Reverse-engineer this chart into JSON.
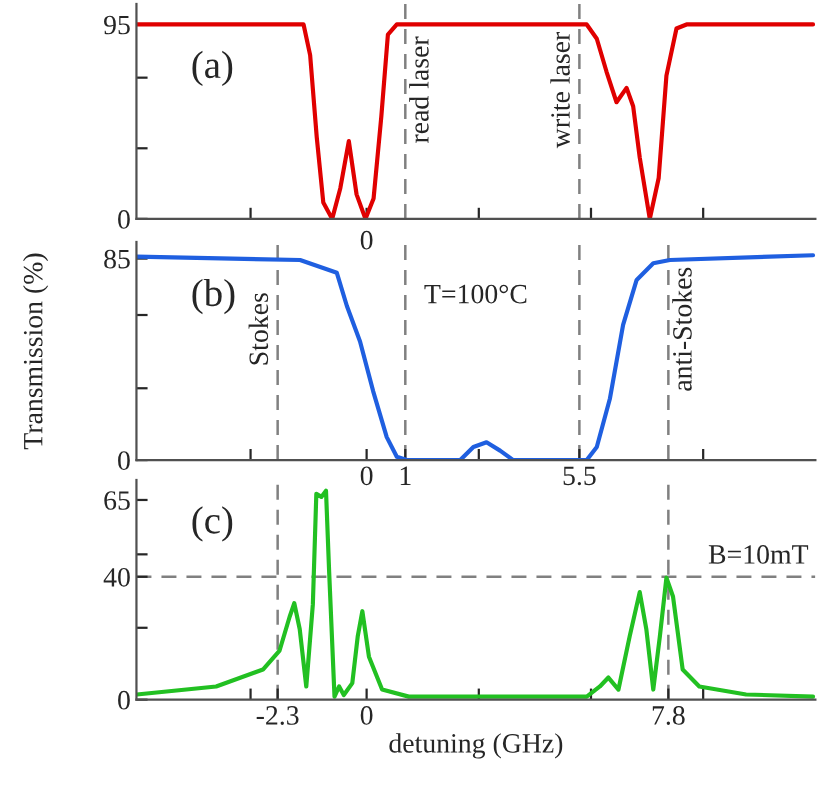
{
  "chart_data": [
    {
      "type": "line",
      "annotations": [
        "(a)",
        {
          "text": "0",
          "x": 0,
          "y": 0
        }
      ],
      "tick_labels": "y",
      "x": [
        -5.94,
        -1.63,
        -1.46,
        -1.29,
        -1.12,
        -0.89,
        -0.68,
        -0.46,
        -0.26,
        -0.03,
        0.18,
        0.38,
        0.55,
        0.78,
        5.69,
        5.95,
        6.2,
        6.46,
        6.72,
        6.89,
        7.06,
        7.32,
        7.55,
        7.75,
        8.01,
        8.27,
        11.54
      ],
      "series": [
        {
          "color": "#e00000",
          "values": [
            95,
            95,
            80,
            40,
            8,
            0,
            15,
            38,
            12,
            0,
            10,
            50,
            90,
            95,
            95,
            88,
            72,
            57,
            64,
            55,
            30,
            0,
            20,
            70,
            93,
            95,
            95
          ]
        }
      ],
      "xlim": [
        -5.95,
        11.6
      ],
      "xticks": [
        {
          "value": -3,
          "label": null
        },
        {
          "value": 0,
          "label": null
        },
        {
          "value": 2.9,
          "label": null
        },
        {
          "value": 5.8,
          "label": null
        },
        {
          "value": 8.7,
          "label": null
        }
      ],
      "ylim": [
        0,
        105
      ],
      "yticks": [
        0,
        {
          "value": 34.5,
          "label": null
        },
        {
          "value": 69,
          "label": null
        },
        95
      ],
      "ref_lines": [
        {
          "axis": "x",
          "value": 1,
          "label": "read laser",
          "color": "#808080",
          "line_style": "dashed"
        },
        {
          "axis": "x",
          "value": 5.5,
          "label": "write laser",
          "color": "#808080",
          "line_style": "dashed"
        }
      ],
      "grid": false,
      "legend": false,
      "line_style": "solid"
    },
    {
      "type": "line",
      "ylabel": "Transmission (%)",
      "annotations": [
        "(b)",
        "T=100°C"
      ],
      "x": [
        -5.94,
        -1.72,
        -0.77,
        -0.51,
        -0.17,
        0.17,
        0.52,
        0.78,
        1.04,
        2.42,
        2.76,
        3.1,
        3.45,
        3.79,
        5.69,
        5.95,
        6.29,
        6.63,
        6.98,
        7.41,
        7.84,
        11.54
      ],
      "series": [
        {
          "color": "#1f5fe0",
          "values": [
            85.8,
            84.4,
            79,
            65,
            50,
            29,
            9.7,
            1.4,
            0,
            0,
            5.5,
            7.5,
            4,
            0,
            0,
            5.5,
            26,
            57,
            76,
            83,
            84.4,
            86.4
          ]
        }
      ],
      "xlim": [
        -5.95,
        11.6
      ],
      "xticks": [
        {
          "value": -3,
          "label": null
        },
        0,
        1,
        {
          "value": 2.9,
          "label": null
        },
        5.5,
        {
          "value": 8.7,
          "label": null
        }
      ],
      "ylim": [
        0,
        92
      ],
      "yticks": [
        0,
        {
          "value": 30.3,
          "label": null
        },
        {
          "value": 61.2,
          "label": null
        },
        85
      ],
      "ref_lines": [
        {
          "axis": "x",
          "value": -2.3,
          "label": "Stokes",
          "color": "#808080",
          "line_style": "dashed"
        },
        {
          "axis": "x",
          "value": 1,
          "color": "#808080",
          "line_style": "dashed"
        },
        {
          "axis": "x",
          "value": 5.5,
          "color": "#808080",
          "line_style": "dashed"
        },
        {
          "axis": "x",
          "value": 7.8,
          "label": "anti-Stokes",
          "color": "#808080",
          "line_style": "dashed"
        }
      ],
      "grid": false,
      "legend": false,
      "line_style": "solid"
    },
    {
      "type": "line",
      "xlabel": "detuning (GHz)",
      "annotations": [
        "(c)",
        "B=10mT"
      ],
      "x": [
        -5.94,
        -3.89,
        -2.68,
        -2.25,
        -1.99,
        -1.87,
        -1.73,
        -1.56,
        -1.39,
        -1.3,
        -1.17,
        -1.05,
        -0.97,
        -0.83,
        -0.71,
        -0.59,
        -0.37,
        -0.23,
        -0.11,
        0.06,
        0.4,
        1.09,
        5.69,
        6.03,
        6.25,
        6.51,
        6.8,
        7.06,
        7.23,
        7.41,
        7.58,
        7.75,
        7.92,
        8.17,
        8.6,
        9.81,
        11.54
      ],
      "series": [
        {
          "color": "#22c022",
          "values": [
            1.7,
            4.3,
            9.8,
            16,
            27,
            31.4,
            23,
            4.3,
            31,
            67,
            66,
            68,
            42,
            1,
            4.3,
            1.5,
            5.4,
            20.6,
            28.8,
            14,
            3.3,
            1,
            1,
            4.3,
            7.2,
            3.3,
            20.6,
            35,
            23,
            3.3,
            20.6,
            39.7,
            33.6,
            9.8,
            4.3,
            1.7,
            1
          ]
        }
      ],
      "xlim": [
        -5.95,
        11.6
      ],
      "xticks": [
        {
          "value": -3,
          "label": null
        },
        -2.3,
        0,
        {
          "value": 2.9,
          "label": null
        },
        {
          "value": 5.8,
          "label": null
        },
        7.8,
        {
          "value": 8.7,
          "label": null
        }
      ],
      "ylim": [
        0,
        71.5
      ],
      "yticks": [
        0,
        {
          "value": 23.4,
          "label": null
        },
        40,
        {
          "value": 47.3,
          "label": null
        },
        65
      ],
      "ref_lines": [
        {
          "axis": "x",
          "value": -2.3,
          "color": "#808080",
          "line_style": "dashed"
        },
        {
          "axis": "x",
          "value": 7.8,
          "color": "#808080",
          "line_style": "dashed"
        },
        {
          "axis": "y",
          "value": 40,
          "color": "#808080",
          "line_style": "dashed"
        }
      ],
      "grid": false,
      "legend": false,
      "line_style": "solid"
    }
  ]
}
